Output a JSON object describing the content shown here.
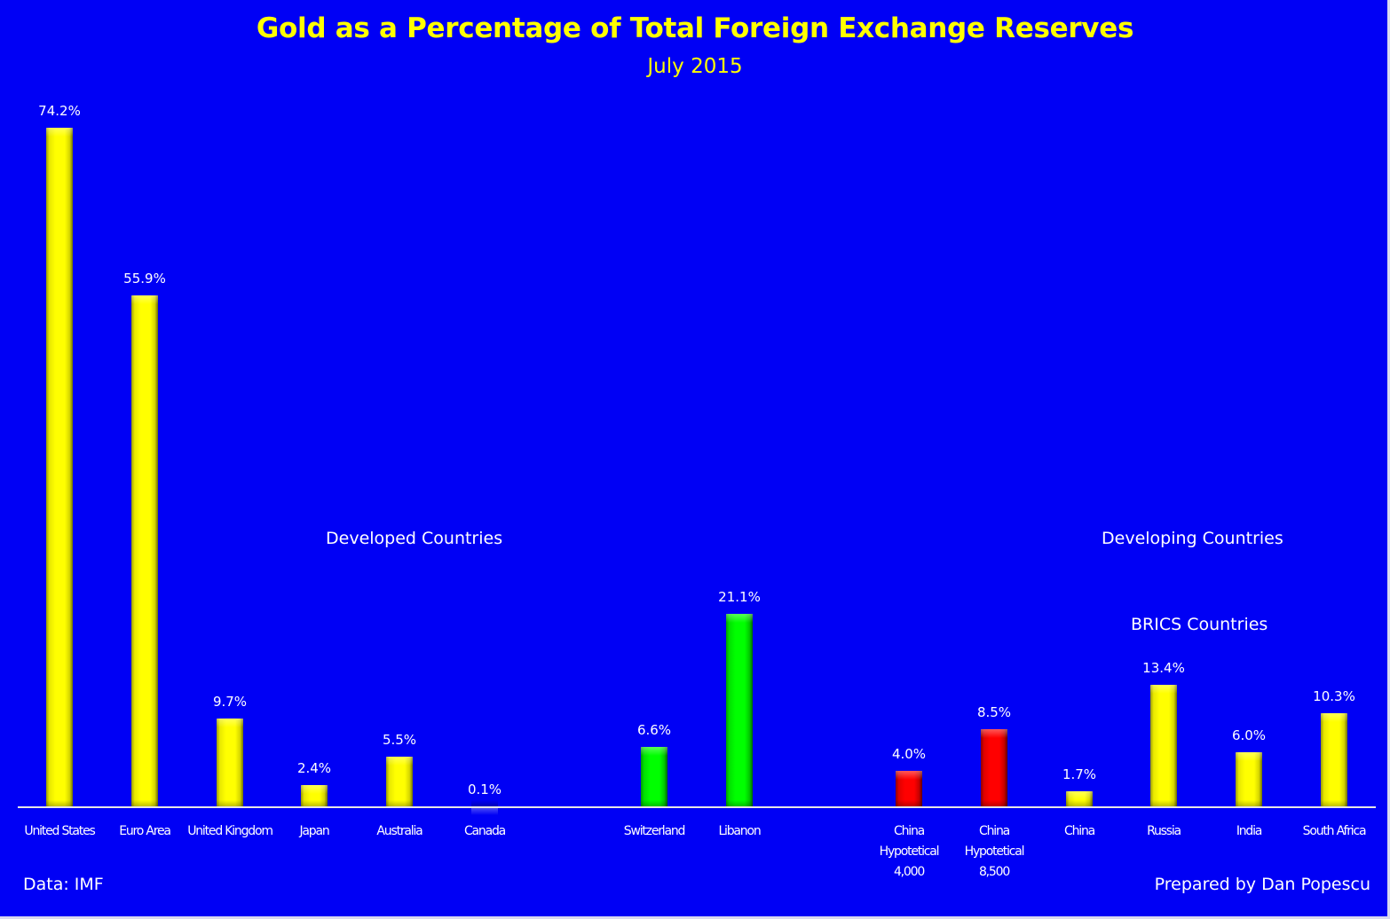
{
  "title": "Gold as a Percentage of Total Foreign Exchange Reserves",
  "subtitle": "July 2015",
  "annotations": {
    "developed": "Developed Countries",
    "developing": "Developing Countries",
    "brics": "BRICS Countries"
  },
  "footer": {
    "source": "Data: IMF",
    "credit": "Prepared by Dan Popescu"
  },
  "colors": {
    "background": "#0000f5",
    "title": "#ffff00",
    "yellow_bar": "#ffff00",
    "green_bar": "#00ff00",
    "red_bar": "#ff0000",
    "text": "#ffffff"
  },
  "bars": [
    {
      "label_lines": [
        "United States"
      ],
      "value": 74.2,
      "display": "74.2%",
      "color": "yellow",
      "center": 67
    },
    {
      "label_lines": [
        "Euro Area"
      ],
      "value": 55.9,
      "display": "55.9%",
      "color": "yellow",
      "center": 163
    },
    {
      "label_lines": [
        "United Kingdom"
      ],
      "value": 9.7,
      "display": "9.7%",
      "color": "yellow",
      "center": 259
    },
    {
      "label_lines": [
        "Japan"
      ],
      "value": 2.4,
      "display": "2.4%",
      "color": "yellow",
      "center": 354
    },
    {
      "label_lines": [
        "Australia"
      ],
      "value": 5.5,
      "display": "5.5%",
      "color": "yellow",
      "center": 450
    },
    {
      "label_lines": [
        "Canada"
      ],
      "value": 0.1,
      "display": "0.1%",
      "color": "yellow",
      "center": 546
    },
    {
      "label_lines": [
        "Switzerland"
      ],
      "value": 6.6,
      "display": "6.6%",
      "color": "green",
      "center": 737
    },
    {
      "label_lines": [
        "Libanon"
      ],
      "value": 21.1,
      "display": "21.1%",
      "color": "green",
      "center": 833
    },
    {
      "label_lines": [
        "China",
        "Hypotetical",
        "4,000"
      ],
      "value": 4.0,
      "display": "4.0%",
      "color": "red",
      "center": 1024
    },
    {
      "label_lines": [
        "China",
        "Hypotetical",
        "8,500"
      ],
      "value": 8.5,
      "display": "8.5%",
      "color": "red",
      "center": 1120
    },
    {
      "label_lines": [
        "China"
      ],
      "value": 1.7,
      "display": "1.7%",
      "color": "yellow",
      "center": 1216
    },
    {
      "label_lines": [
        "Russia"
      ],
      "value": 13.4,
      "display": "13.4%",
      "color": "yellow",
      "center": 1311
    },
    {
      "label_lines": [
        "India"
      ],
      "value": 6.0,
      "display": "6.0%",
      "color": "yellow",
      "center": 1407
    },
    {
      "label_lines": [
        "South Africa"
      ],
      "value": 10.3,
      "display": "10.3%",
      "color": "yellow",
      "center": 1503
    }
  ],
  "chart_data": {
    "type": "bar",
    "title": "Gold as a Percentage of Total Foreign Exchange Reserves",
    "subtitle": "July 2015",
    "xlabel": "",
    "ylabel": "",
    "categories": [
      "United States",
      "Euro Area",
      "United Kingdom",
      "Japan",
      "Australia",
      "Canada",
      "Switzerland",
      "Libanon",
      "China Hypotetical 4,000",
      "China Hypotetical 8,500",
      "China",
      "Russia",
      "India",
      "South Africa"
    ],
    "values": [
      74.2,
      55.9,
      9.7,
      2.4,
      5.5,
      0.1,
      6.6,
      21.1,
      4.0,
      8.5,
      1.7,
      13.4,
      6.0,
      10.3
    ],
    "data_labels": [
      "74.2%",
      "55.9%",
      "9.7%",
      "2.4%",
      "5.5%",
      "0.1%",
      "6.6%",
      "21.1%",
      "4.0%",
      "8.5%",
      "1.7%",
      "13.4%",
      "6.0%",
      "10.3%"
    ],
    "bar_colors": [
      "yellow",
      "yellow",
      "yellow",
      "yellow",
      "yellow",
      "yellow",
      "green",
      "green",
      "red",
      "red",
      "yellow",
      "yellow",
      "yellow",
      "yellow"
    ],
    "groups": [
      {
        "name": "Developed Countries",
        "members": [
          "United States",
          "Euro Area",
          "United Kingdom",
          "Japan",
          "Australia",
          "Canada"
        ]
      },
      {
        "name": "Developing Countries",
        "members": [
          "China Hypotetical 4,000",
          "China Hypotetical 8,500",
          "China",
          "Russia",
          "India",
          "South Africa"
        ]
      },
      {
        "name": "BRICS Countries",
        "members": [
          "China",
          "Russia",
          "India",
          "South Africa"
        ]
      }
    ],
    "annotations": [
      "Developed Countries",
      "Developing Countries",
      "BRICS Countries",
      "Data: IMF",
      "Prepared by Dan Popescu"
    ],
    "ylim": [
      0,
      80
    ],
    "grid": false,
    "legend": "none",
    "y_axis_visible": false
  }
}
